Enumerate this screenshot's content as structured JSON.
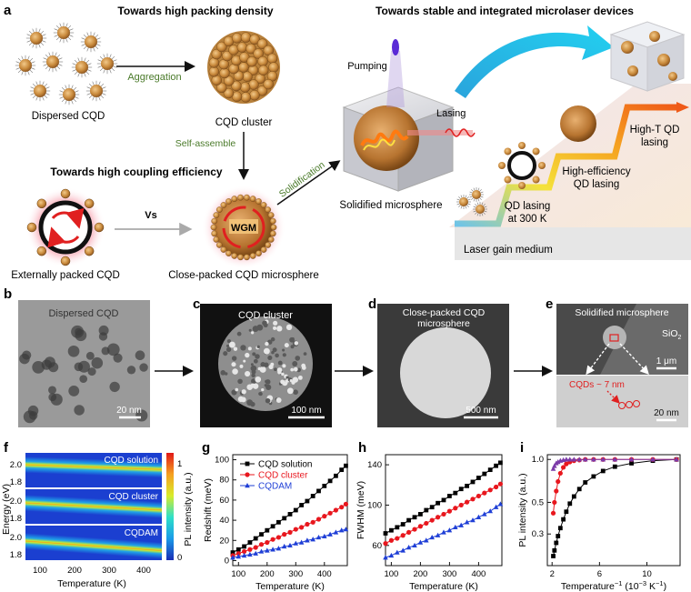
{
  "panel_a": {
    "letter": "a",
    "title_left": "Towards high packing density",
    "title_right": "Towards stable and integrated microlaser devices",
    "title_coupling": "Towards high coupling efficiency",
    "dispersed_cqd": "Dispersed CQD",
    "aggregation": "Aggregation",
    "cqd_cluster": "CQD cluster",
    "self_assemble": "Self-assemble",
    "vs": "Vs",
    "externally_packed": "Externally packed CQD",
    "close_packed_microsphere": "Close-packed CQD microsphere",
    "wgm": "WGM",
    "solidification": "Solidification",
    "pumping": "Pumping",
    "lasing": "Lasing",
    "solidified_microsphere": "Solidified microsphere",
    "step1_l1": "QD lasing",
    "step1_l2": "at 300 K",
    "step2_l1": "High-efficiency",
    "step2_l2": "QD lasing",
    "step3_l1": "High-T QD",
    "step3_l2": "lasing",
    "laser_gain_medium": "Laser gain medium"
  },
  "panel_b": {
    "letter": "b",
    "label": "Dispersed CQD",
    "scale": "20 nm"
  },
  "panel_c": {
    "letter": "c",
    "label": "CQD cluster",
    "scale": "100 nm"
  },
  "panel_d": {
    "letter": "d",
    "label_l1": "Close-packed CQD",
    "label_l2": "microsphere",
    "scale": "500 nm"
  },
  "panel_e": {
    "letter": "e",
    "label": "Solidified microsphere",
    "sio2": "SiO",
    "sio2_sub": "2",
    "scale_top": "1 μm",
    "cqds": "CQDs ~ 7 nm",
    "scale_bottom": "20 nm"
  },
  "panel_f": {
    "letter": "f",
    "ylabel": "Energy (eV)",
    "xlabel": "Temperature (K)",
    "colorbar_label": "PL intensity (a.u.)",
    "colorbar_ticks": [
      "1",
      "0"
    ],
    "rows": [
      "CQD solution",
      "CQD cluster",
      "CQDAM"
    ],
    "yticks": [
      "2.0",
      "1.8"
    ],
    "xticks": [
      "100",
      "200",
      "300",
      "400"
    ]
  },
  "chart_data": [
    {
      "panel": "g",
      "type": "scatter",
      "xlabel": "Temperature (K)",
      "ylabel": "Redshift (meV)",
      "xlim": [
        80,
        480
      ],
      "ylim": [
        -5,
        105
      ],
      "xticks": [
        100,
        200,
        300,
        400
      ],
      "yticks": [
        0,
        20,
        40,
        60,
        80,
        100
      ],
      "legend": "top-left",
      "x": [
        80,
        100,
        120,
        140,
        160,
        180,
        200,
        220,
        240,
        260,
        280,
        300,
        320,
        340,
        360,
        380,
        400,
        420,
        440,
        460,
        475
      ],
      "series": [
        {
          "name": "CQD solution",
          "color": "#000000",
          "marker": "square",
          "values": [
            8,
            11,
            14,
            18,
            22,
            26,
            30,
            34,
            38,
            42,
            46,
            50,
            55,
            59,
            64,
            69,
            74,
            79,
            84,
            90,
            94
          ]
        },
        {
          "name": "CQD cluster",
          "color": "#e8171e",
          "marker": "circle",
          "values": [
            5,
            7,
            9,
            11,
            13,
            16,
            18,
            21,
            23,
            26,
            28,
            31,
            33,
            36,
            38,
            41,
            44,
            47,
            50,
            53,
            56
          ]
        },
        {
          "name": "CQDAM",
          "color": "#1f3fd6",
          "marker": "triangle",
          "values": [
            3,
            4,
            5,
            6,
            7,
            9,
            10,
            11,
            12,
            14,
            15,
            17,
            18,
            20,
            21,
            23,
            24,
            26,
            28,
            30,
            31
          ]
        }
      ]
    },
    {
      "panel": "h",
      "type": "scatter",
      "xlabel": "Temperature (K)",
      "ylabel": "FWHM (meV)",
      "xlim": [
        80,
        480
      ],
      "ylim": [
        40,
        150
      ],
      "xticks": [
        100,
        200,
        300,
        400
      ],
      "yticks": [
        60,
        100,
        140
      ],
      "x": [
        80,
        100,
        120,
        140,
        160,
        180,
        200,
        220,
        240,
        260,
        280,
        300,
        320,
        340,
        360,
        380,
        400,
        420,
        440,
        460,
        475
      ],
      "series": [
        {
          "name": "CQD solution",
          "color": "#000000",
          "marker": "square",
          "values": [
            72,
            75,
            78,
            81,
            85,
            88,
            91,
            95,
            98,
            102,
            105,
            109,
            112,
            116,
            119,
            123,
            127,
            131,
            135,
            139,
            142
          ]
        },
        {
          "name": "CQD cluster",
          "color": "#e8171e",
          "marker": "circle",
          "values": [
            62,
            65,
            67,
            70,
            73,
            76,
            79,
            82,
            85,
            88,
            91,
            94,
            97,
            100,
            103,
            106,
            109,
            112,
            115,
            118,
            121
          ]
        },
        {
          "name": "CQDAM",
          "color": "#1f3fd6",
          "marker": "triangle",
          "values": [
            48,
            50,
            53,
            55,
            58,
            60,
            63,
            65,
            68,
            70,
            73,
            75,
            78,
            80,
            83,
            85,
            88,
            91,
            94,
            98,
            101
          ]
        }
      ]
    },
    {
      "panel": "i",
      "type": "scatter",
      "xlabel": "Temperature",
      "xlabel_sup": "−1",
      "xlabel_unit": " (10",
      "xlabel_unit_sup": "−3",
      "xlabel_unit_tail": " K",
      "xlabel_unit_sup2": "−1",
      "xlabel_close": ")",
      "ylabel": "PL intensity (a.u.)",
      "xlim": [
        1.6,
        12.8
      ],
      "ylim": [
        0.18,
        1.08
      ],
      "yscale": "log",
      "xticks": [
        2,
        6,
        10
      ],
      "yticks": [
        0.3,
        0.5,
        1.0
      ],
      "series": [
        {
          "name": "CQD solution",
          "color": "#000000",
          "marker": "square",
          "x": [
            2.1,
            2.2,
            2.35,
            2.5,
            2.7,
            2.95,
            3.2,
            3.5,
            3.85,
            4.3,
            4.8,
            5.5,
            6.3,
            7.3,
            8.7,
            10.5,
            12.5
          ],
          "values": [
            0.21,
            0.23,
            0.26,
            0.29,
            0.33,
            0.38,
            0.43,
            0.49,
            0.55,
            0.62,
            0.69,
            0.76,
            0.83,
            0.89,
            0.94,
            0.98,
            1.0
          ]
        },
        {
          "name": "CQD cluster",
          "color": "#e8171e",
          "marker": "circle",
          "x": [
            2.1,
            2.2,
            2.35,
            2.5,
            2.7,
            2.95,
            3.2,
            3.5,
            3.85,
            4.3,
            4.8,
            5.5,
            6.3,
            7.3,
            8.7,
            10.5,
            12.5
          ],
          "values": [
            0.42,
            0.5,
            0.6,
            0.7,
            0.8,
            0.88,
            0.93,
            0.96,
            0.98,
            0.99,
            1.0,
            1.0,
            1.0,
            1.0,
            1.0,
            1.0,
            1.0
          ]
        },
        {
          "name": "CQDAM",
          "color": "#7b3aa8",
          "marker": "triangle",
          "x": [
            2.1,
            2.2,
            2.35,
            2.5,
            2.7,
            2.95,
            3.2,
            3.5,
            3.85,
            4.3,
            4.8,
            5.5,
            6.3,
            7.3,
            8.7,
            10.5,
            12.5
          ],
          "values": [
            0.86,
            0.9,
            0.94,
            0.96,
            0.98,
            0.99,
            1.0,
            1.0,
            1.0,
            1.0,
            1.0,
            1.0,
            1.0,
            1.0,
            1.0,
            1.0,
            1.0
          ]
        }
      ]
    }
  ]
}
